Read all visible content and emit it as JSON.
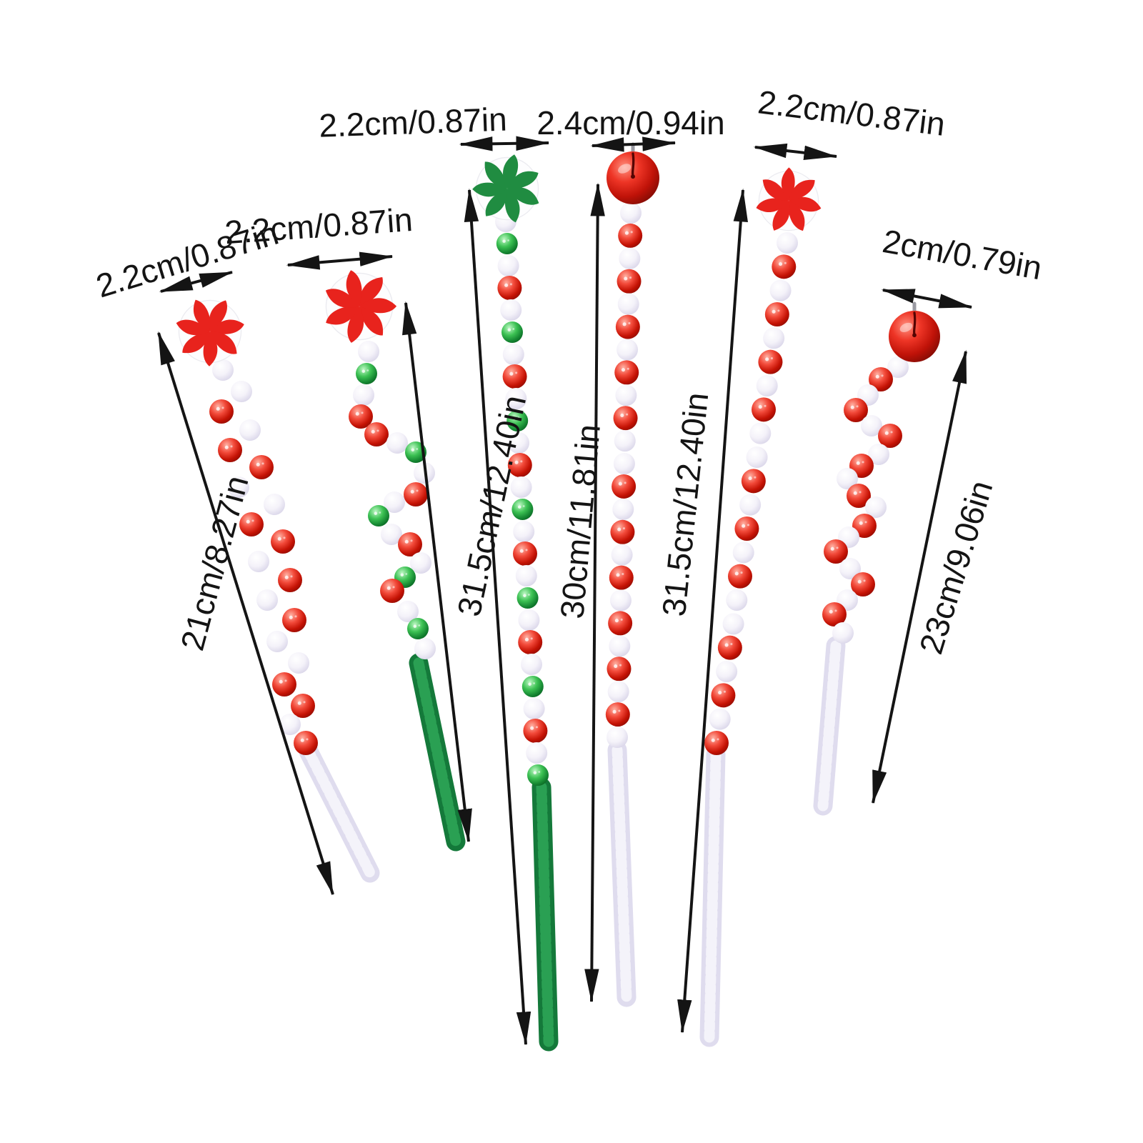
{
  "page": {
    "background": "#ffffff",
    "type": "product-dimension-diagram"
  },
  "labels": {
    "stick1_width": "2.2cm/0.87in",
    "stick2_width": "2.2cm/0.87in",
    "stick3_width": "2.2cm/0.87in",
    "stick4_width": "2.4cm/0.94in",
    "stick5_width": "2.2cm/0.87in",
    "stick6_width": "2cm/0.79in",
    "stick1_length": "21cm/8.27in",
    "stick3_length": "31.5cm/12.40in",
    "stick4_length": "30cm/11.81in",
    "stick5_length": "31.5cm/12.40in",
    "stick6_length": "23cm/9.06in"
  },
  "colors": {
    "arrow": "#141414",
    "bead_white": "#f3f1f8",
    "bead_red": "#d41708",
    "bead_green": "#1f9a38",
    "candy_red": "#e8231d",
    "candy_green": "#208c41",
    "bell_red": "#cf1a12",
    "stem_white": "#e2dff0",
    "stem_green": "#167c3b"
  },
  "sticks": [
    {
      "name": "stick-1-candy-red-white-beads",
      "topper": "peppermint-candy-red",
      "stem_color": "white",
      "bead_sequence": "wwrwrrwwrrwrwrwwrrwr",
      "width_label": "2.2cm/0.87in",
      "length_label": "21cm/8.27in"
    },
    {
      "name": "stick-2-candy-red-green-stem",
      "topper": "peppermint-candy-red",
      "stem_color": "green",
      "bead_sequence": "wgwrrwgwrwgwrwgrwgw",
      "width_label": "2.2cm/0.87in",
      "length_label": ""
    },
    {
      "name": "stick-3-candy-green-straight",
      "topper": "peppermint-candy-green",
      "stem_color": "green",
      "bead_sequence": "wgwrwgwrwgwrwgwrwgwrwgwrwg",
      "width_label": "2.2cm/0.87in",
      "length_label": "31.5cm/12.40in"
    },
    {
      "name": "stick-4-bell-straight",
      "topper": "jingle-bell-red",
      "stem_color": "white",
      "bead_sequence": "wrwrwrwrwrwwrwrwrwrwrwrw",
      "width_label": "2.4cm/0.94in",
      "length_label": "30cm/11.81in"
    },
    {
      "name": "stick-5-candy-red-straight",
      "topper": "peppermint-candy-red",
      "stem_color": "white",
      "bead_sequence": "wrwrwrwrwwrwrwrwwrwrwr",
      "width_label": "2.2cm/0.87in",
      "length_label": "31.5cm/12.40in"
    },
    {
      "name": "stick-6-bell-zigzag",
      "topper": "jingle-bell-red",
      "stem_color": "white",
      "bead_sequence": "wrwrwrwrwrwrwrwrwrw",
      "width_label": "2cm/0.79in",
      "length_label": "23cm/9.06in"
    }
  ]
}
